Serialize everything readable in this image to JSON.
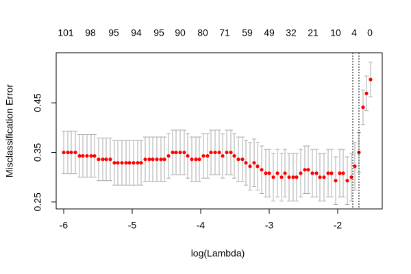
{
  "chart_data": {
    "type": "scatter",
    "xlabel": "log(Lambda)",
    "ylabel": "Misclassification Error",
    "x": [
      -6.0,
      -5.94,
      -5.89,
      -5.83,
      -5.77,
      -5.72,
      -5.66,
      -5.6,
      -5.55,
      -5.49,
      -5.43,
      -5.38,
      -5.32,
      -5.26,
      -5.21,
      -5.15,
      -5.09,
      -5.04,
      -4.98,
      -4.92,
      -4.87,
      -4.81,
      -4.75,
      -4.7,
      -4.64,
      -4.58,
      -4.53,
      -4.47,
      -4.41,
      -4.36,
      -4.3,
      -4.24,
      -4.19,
      -4.13,
      -4.07,
      -4.02,
      -3.96,
      -3.9,
      -3.85,
      -3.79,
      -3.73,
      -3.68,
      -3.62,
      -3.56,
      -3.51,
      -3.45,
      -3.39,
      -3.34,
      -3.28,
      -3.22,
      -3.17,
      -3.11,
      -3.05,
      -3.0,
      -2.94,
      -2.88,
      -2.82,
      -2.77,
      -2.71,
      -2.65,
      -2.6,
      -2.54,
      -2.48,
      -2.43,
      -2.37,
      -2.31,
      -2.26,
      -2.2,
      -2.14,
      -2.09,
      -2.03,
      -1.97,
      -1.92,
      -1.86,
      -1.8,
      -1.75,
      -1.69,
      -1.63,
      -1.58,
      -1.52
    ],
    "values": [
      0.35,
      0.35,
      0.35,
      0.35,
      0.343,
      0.343,
      0.343,
      0.343,
      0.343,
      0.336,
      0.336,
      0.336,
      0.336,
      0.329,
      0.329,
      0.329,
      0.329,
      0.329,
      0.329,
      0.329,
      0.329,
      0.336,
      0.336,
      0.336,
      0.336,
      0.336,
      0.336,
      0.343,
      0.35,
      0.35,
      0.35,
      0.35,
      0.343,
      0.336,
      0.336,
      0.336,
      0.343,
      0.343,
      0.35,
      0.35,
      0.35,
      0.343,
      0.35,
      0.35,
      0.343,
      0.336,
      0.336,
      0.329,
      0.322,
      0.329,
      0.322,
      0.315,
      0.308,
      0.308,
      0.3,
      0.308,
      0.3,
      0.308,
      0.3,
      0.3,
      0.3,
      0.308,
      0.315,
      0.315,
      0.308,
      0.308,
      0.3,
      0.3,
      0.308,
      0.308,
      0.293,
      0.308,
      0.308,
      0.293,
      0.3,
      0.322,
      0.35,
      0.441,
      0.469,
      0.497
    ],
    "errors": [
      0.043,
      0.043,
      0.043,
      0.043,
      0.043,
      0.043,
      0.043,
      0.043,
      0.043,
      0.043,
      0.043,
      0.043,
      0.043,
      0.045,
      0.045,
      0.045,
      0.045,
      0.045,
      0.045,
      0.045,
      0.045,
      0.045,
      0.045,
      0.045,
      0.045,
      0.045,
      0.045,
      0.045,
      0.045,
      0.045,
      0.045,
      0.045,
      0.045,
      0.045,
      0.045,
      0.045,
      0.045,
      0.045,
      0.045,
      0.045,
      0.045,
      0.045,
      0.045,
      0.045,
      0.045,
      0.045,
      0.045,
      0.045,
      0.048,
      0.048,
      0.048,
      0.048,
      0.048,
      0.048,
      0.048,
      0.048,
      0.048,
      0.048,
      0.048,
      0.048,
      0.048,
      0.048,
      0.048,
      0.048,
      0.048,
      0.048,
      0.048,
      0.048,
      0.048,
      0.048,
      0.048,
      0.048,
      0.048,
      0.048,
      0.048,
      0.048,
      0.04,
      0.035,
      0.035,
      0.035
    ],
    "color": "#ff0000",
    "error_color": "#a9a9a9",
    "xlim": [
      -6.11,
      -1.35
    ],
    "ylim": [
      0.236,
      0.551
    ],
    "xticks": [
      -6,
      -5,
      -4,
      -3,
      -2
    ],
    "yticks": [
      0.25,
      0.35,
      0.45
    ],
    "vlines": [
      -1.78,
      -1.69
    ],
    "nonzero": [
      101,
      98,
      95,
      94,
      95,
      90,
      80,
      71,
      59,
      49,
      32,
      21,
      10,
      4,
      0
    ],
    "nonzero_x": [
      -5.97,
      -5.61,
      -5.27,
      -4.94,
      -4.61,
      -4.3,
      -3.97,
      -3.65,
      -3.32,
      -3.0,
      -2.68,
      -2.36,
      -2.03,
      -1.76,
      -1.53
    ]
  }
}
